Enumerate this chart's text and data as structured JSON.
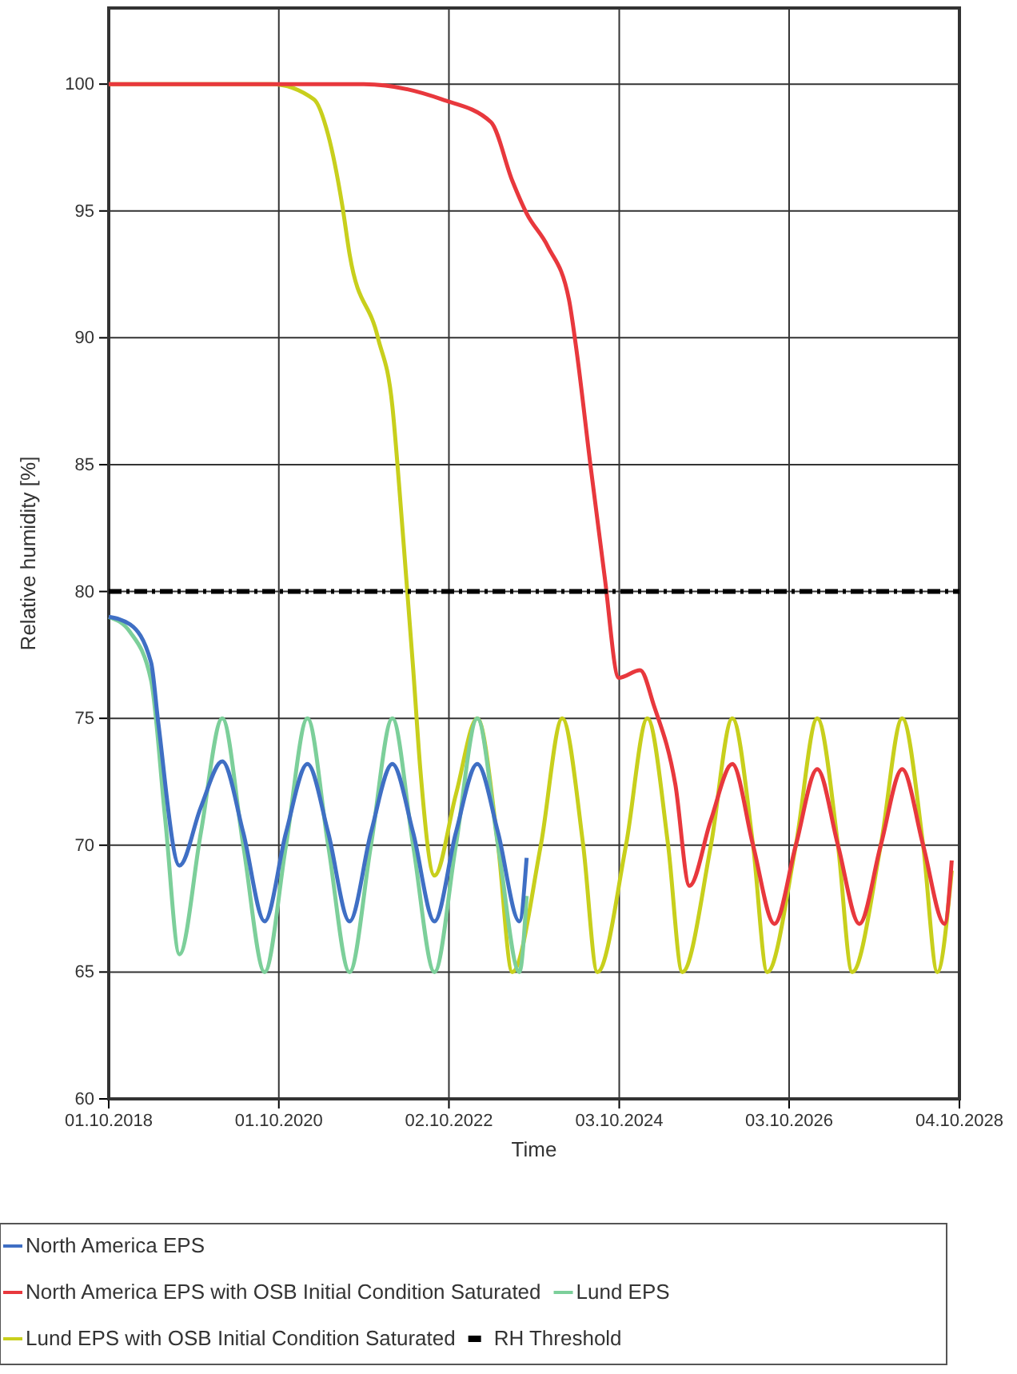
{
  "chart_data": {
    "type": "line",
    "xlabel": "Time",
    "ylabel": "Relative humidity [%]",
    "xlim": [
      "2018-10-01",
      "2028-10-04"
    ],
    "xticks": [
      {
        "value": "2018-10-01",
        "label": "01.10.2018"
      },
      {
        "value": "2020-10-01",
        "label": "01.10.2020"
      },
      {
        "value": "2022-10-02",
        "label": "02.10.2022"
      },
      {
        "value": "2024-10-03",
        "label": "03.10.2024"
      },
      {
        "value": "2026-10-03",
        "label": "03.10.2026"
      },
      {
        "value": "2028-10-04",
        "label": "04.10.2028"
      }
    ],
    "ylim": [
      60,
      103
    ],
    "yticks": [
      60,
      65,
      70,
      75,
      80,
      85,
      90,
      95,
      100
    ],
    "grid": true,
    "legend": "bottom",
    "series": [
      {
        "name": "North America EPS",
        "color": "#3f6fc4",
        "x": [
          "2018-10",
          "2019-01",
          "2019-04",
          "2019-05",
          "2019-08",
          "2019-11",
          "2020-02",
          "2020-05",
          "2020-08",
          "2020-11",
          "2021-02",
          "2021-05",
          "2021-08",
          "2021-11",
          "2022-02",
          "2022-05",
          "2022-08",
          "2022-11",
          "2023-02",
          "2023-05",
          "2023-08",
          "2023-09"
        ],
        "values": [
          79,
          78.7,
          77.2,
          74.9,
          69.2,
          71.5,
          73.3,
          70.5,
          67,
          70.5,
          73.2,
          70.5,
          67,
          70.5,
          73.2,
          70.5,
          67,
          70.5,
          73.2,
          70.5,
          67,
          69.5
        ]
      },
      {
        "name": "North America EPS with OSB Initial Condition Saturated",
        "color": "#e8383d",
        "x": [
          "2018-10",
          "2021-10",
          "2022-09",
          "2023-04",
          "2023-07",
          "2023-09",
          "2023-12",
          "2024-03",
          "2024-04",
          "2024-06",
          "2024-08",
          "2024-10",
          "2025-01",
          "2025-03",
          "2025-06",
          "2025-08",
          "2025-11",
          "2026-02",
          "2026-05",
          "2026-08",
          "2026-11",
          "2027-02",
          "2027-05",
          "2027-08",
          "2027-11",
          "2028-02",
          "2028-05",
          "2028-08",
          "2028-09"
        ],
        "values": [
          100,
          100,
          99.4,
          98.5,
          96.2,
          94.9,
          93.6,
          91.5,
          89.6,
          85,
          80.6,
          76.6,
          76.9,
          75.5,
          72.4,
          68.4,
          71,
          73.2,
          70,
          66.9,
          70,
          73,
          70,
          66.9,
          70,
          73,
          70,
          66.9,
          69.4
        ]
      },
      {
        "name": "Lund EPS",
        "color": "#7ccf9a",
        "x": [
          "2018-10",
          "2019-01",
          "2019-04",
          "2019-06",
          "2019-08",
          "2019-11",
          "2020-02",
          "2020-05",
          "2020-08",
          "2020-11",
          "2021-02",
          "2021-05",
          "2021-08",
          "2021-11",
          "2022-02",
          "2022-05",
          "2022-08",
          "2022-11",
          "2023-02",
          "2023-05",
          "2023-08",
          "2023-09"
        ],
        "values": [
          79,
          78.4,
          76.5,
          71,
          65.7,
          70.5,
          75,
          70,
          65,
          70,
          75,
          70,
          65,
          70,
          75,
          70,
          65,
          70,
          75,
          70,
          65,
          68
        ]
      },
      {
        "name": "Lund EPS with OSB Initial Condition Saturated",
        "color": "#c8cf1c",
        "x": [
          "2018-10",
          "2020-09",
          "2021-03",
          "2021-05",
          "2021-07",
          "2021-08",
          "2021-12",
          "2022-02",
          "2022-03",
          "2022-04",
          "2022-05",
          "2022-06",
          "2022-08",
          "2022-11",
          "2023-02",
          "2023-05",
          "2023-07",
          "2023-11",
          "2024-02",
          "2024-05",
          "2024-07",
          "2024-11",
          "2025-02",
          "2025-05",
          "2025-07",
          "2025-11",
          "2026-02",
          "2026-05",
          "2026-07",
          "2026-11",
          "2027-02",
          "2027-05",
          "2027-07",
          "2027-11",
          "2028-02",
          "2028-05",
          "2028-07",
          "2028-09"
        ],
        "values": [
          100,
          100,
          99.4,
          98,
          95.2,
          93.3,
          90,
          87.3,
          84.3,
          80.6,
          77,
          73,
          68.8,
          72,
          75,
          70,
          65,
          70,
          75,
          70,
          65,
          70,
          75,
          70,
          65,
          70,
          75,
          70,
          65,
          70,
          75,
          70,
          65,
          70,
          75,
          70,
          65,
          69
        ]
      }
    ],
    "ref_lines": [
      {
        "axis": "y",
        "value": 80,
        "label": "RH Threshold",
        "color": "#000000",
        "line_style": "dashed"
      }
    ]
  }
}
